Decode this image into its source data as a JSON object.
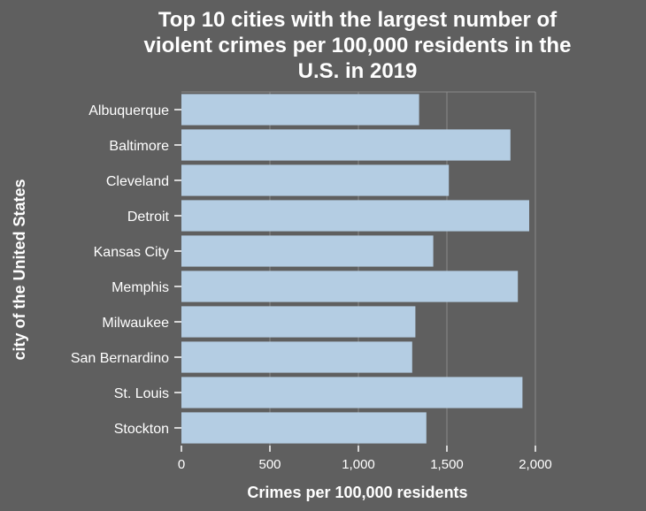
{
  "chart_data": {
    "type": "bar",
    "orientation": "horizontal",
    "title": "Top 10 cities with the largest number of violent crimes per 100,000 residents in the U.S. in 2019",
    "title_lines": [
      "Top 10 cities with the largest number of",
      "violent crimes per 100,000 residents in the",
      "U.S. in 2019"
    ],
    "xlabel": "Crimes per 100,000 residents",
    "ylabel": "city of the United States",
    "categories": [
      "Albuquerque",
      "Baltimore",
      "Cleveland",
      "Detroit",
      "Kansas City",
      "Memphis",
      "Milwaukee",
      "San Bernardino",
      "St. Louis",
      "Stockton"
    ],
    "values": [
      1343,
      1859,
      1511,
      1965,
      1423,
      1901,
      1322,
      1304,
      1927,
      1384
    ],
    "xlim": [
      0,
      2000
    ],
    "xticks": [
      0,
      500,
      1000,
      1500,
      2000
    ],
    "xtick_labels": [
      "0",
      "500",
      "1,000",
      "1,500",
      "2,000"
    ],
    "grid": true,
    "legend": "none",
    "colors": {
      "background": "#5f5f5f",
      "plot_background": "#5f5f5f",
      "bar": "#b4cde3",
      "gridline": "#8a8a8a",
      "text": "#ffffff"
    }
  }
}
